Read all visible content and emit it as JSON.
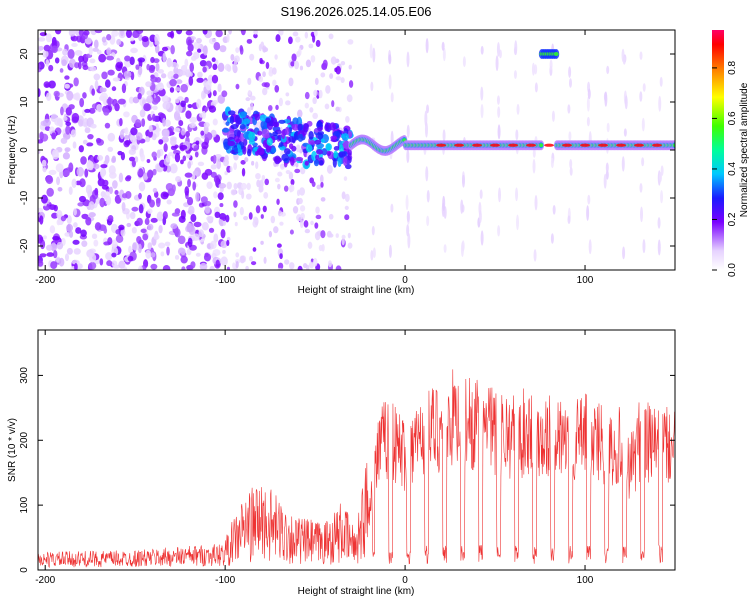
{
  "figure": {
    "title": "S196.2026.025.14.05.E06"
  },
  "chart_data": [
    {
      "type": "heatmap",
      "title": "S196.2026.025.14.05.E06",
      "xlabel": "Height of straight line (km)",
      "ylabel": "Frequency (Hz)",
      "xlim": [
        -204,
        150
      ],
      "ylim": [
        -25,
        25
      ],
      "xticks": [
        -200,
        -100,
        0,
        100
      ],
      "xtick_labels": [
        "-200",
        "-100",
        "0",
        "100"
      ],
      "yticks": [
        -20,
        -10,
        0,
        10,
        20
      ],
      "ytick_labels": [
        "-20",
        "-10",
        "0",
        "10",
        "20"
      ],
      "colorbar": {
        "label": "Normalized spectral amplitude",
        "range": [
          0,
          0.95
        ],
        "ticks": [
          0,
          0.2,
          0.4,
          0.6,
          0.8
        ],
        "tick_labels": [
          "0.0",
          "0.2",
          "0.4",
          "0.6",
          "0.8"
        ]
      },
      "features": [
        {
          "name": "broadband noise",
          "x_range": [
            -204,
            -100
          ],
          "freq_range": [
            -25,
            25
          ],
          "amplitude": 0.15
        },
        {
          "name": "transition noise",
          "x_range": [
            -100,
            -30
          ],
          "freq_range": [
            -25,
            25
          ],
          "amplitude": 0.25
        },
        {
          "name": "low-frequency band",
          "x_range": [
            -100,
            -30
          ],
          "freq_range": [
            -2,
            7
          ],
          "amplitude": 0.35
        },
        {
          "name": "main tonal band",
          "x_range": [
            -30,
            150
          ],
          "center_freq": 1,
          "amplitude": 0.6
        },
        {
          "name": "high-frequency burst",
          "x_range": [
            76,
            84
          ],
          "center_freq": 20,
          "amplitude": 0.5
        }
      ]
    },
    {
      "type": "line",
      "xlabel": "Height of straight line (km)",
      "ylabel": "SNR (10 * v/v)",
      "xlim": [
        -204,
        150
      ],
      "ylim": [
        0,
        370
      ],
      "xticks": [
        -200,
        -100,
        0,
        100
      ],
      "xtick_labels": [
        "-200",
        "-100",
        "0",
        "100"
      ],
      "yticks": [
        0,
        100,
        200,
        300
      ],
      "ytick_labels": [
        "0",
        "100",
        "200",
        "300"
      ],
      "color": "#ee3333",
      "series": [
        {
          "name": "SNR",
          "envelope_x": [
            -204,
            -150,
            -100,
            -90,
            -80,
            -60,
            -45,
            -35,
            -28,
            -20,
            -15,
            -10,
            -5,
            0,
            10,
            20,
            30,
            40,
            50,
            60,
            70,
            80,
            90,
            100,
            110,
            120,
            125,
            130,
            140,
            150
          ],
          "envelope_y": [
            20,
            22,
            30,
            70,
            85,
            50,
            45,
            65,
            40,
            120,
            220,
            250,
            230,
            220,
            250,
            270,
            290,
            270,
            260,
            250,
            260,
            250,
            240,
            250,
            240,
            230,
            190,
            240,
            230,
            230
          ],
          "dip_spacing_km": 10,
          "dip_start_km": -18,
          "dip_level": 30
        }
      ]
    }
  ]
}
